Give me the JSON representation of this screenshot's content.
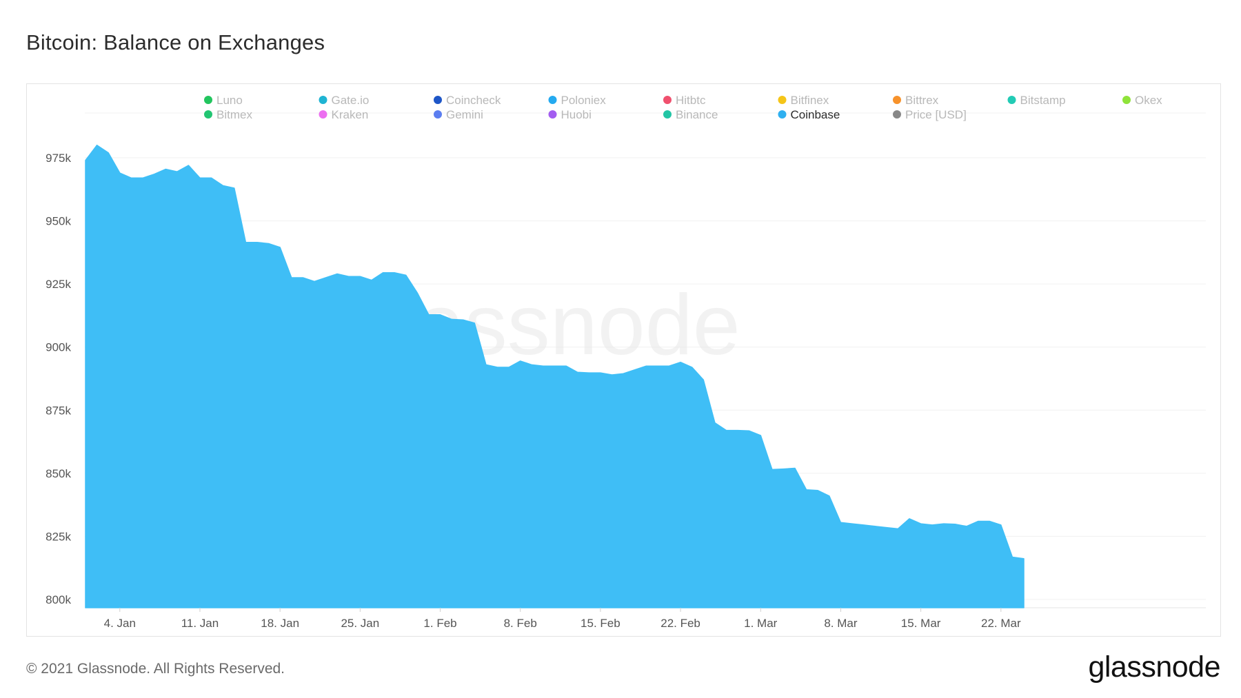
{
  "title": "Bitcoin: Balance on Exchanges",
  "footer": {
    "copyright": "© 2021 Glassnode. All Rights Reserved.",
    "logo": "glassnode"
  },
  "watermark": "glassnode",
  "colors": {
    "area_fill": "#3fbef6",
    "grid": "#f0f0f0",
    "axis_text": "#555555",
    "legend_inactive": "#b8b8b8",
    "legend_active": "#2b2b2b"
  },
  "legend": [
    {
      "name": "Luno",
      "color": "#22c55e",
      "active": false
    },
    {
      "name": "Gate.io",
      "color": "#1fb4d3",
      "active": false
    },
    {
      "name": "Coincheck",
      "color": "#1e56c7",
      "active": false
    },
    {
      "name": "Poloniex",
      "color": "#24aaf0",
      "active": false
    },
    {
      "name": "Hitbtc",
      "color": "#f0506e",
      "active": false
    },
    {
      "name": "Bitfinex",
      "color": "#f5c518",
      "active": false
    },
    {
      "name": "Bittrex",
      "color": "#f7922b",
      "active": false
    },
    {
      "name": "Bitstamp",
      "color": "#22cbb5",
      "active": false
    },
    {
      "name": "Okex",
      "color": "#8fe33a",
      "active": false
    },
    {
      "name": "Bitmex",
      "color": "#22c572",
      "active": false
    },
    {
      "name": "Kraken",
      "color": "#ec6ff0",
      "active": false
    },
    {
      "name": "Gemini",
      "color": "#5b7ef0",
      "active": false
    },
    {
      "name": "Huobi",
      "color": "#a35df0",
      "active": false
    },
    {
      "name": "Binance",
      "color": "#22c5a5",
      "active": false
    },
    {
      "name": "Coinbase",
      "color": "#2fb0f0",
      "active": true
    },
    {
      "name": "Price [USD]",
      "color": "#888888",
      "active": false
    }
  ],
  "chart_data": {
    "type": "area",
    "title": "Bitcoin: Balance on Exchanges",
    "xlabel": "",
    "ylabel": "",
    "ylim": [
      800000,
      980000
    ],
    "y_ticks": [
      {
        "value": 800000,
        "label": "800k"
      },
      {
        "value": 825000,
        "label": "825k"
      },
      {
        "value": 850000,
        "label": "850k"
      },
      {
        "value": 875000,
        "label": "875k"
      },
      {
        "value": 900000,
        "label": "900k"
      },
      {
        "value": 925000,
        "label": "925k"
      },
      {
        "value": 950000,
        "label": "950k"
      },
      {
        "value": 975000,
        "label": "975k"
      }
    ],
    "x_ticks": [
      {
        "date": "2021-01-04",
        "label": "4. Jan"
      },
      {
        "date": "2021-01-11",
        "label": "11. Jan"
      },
      {
        "date": "2021-01-18",
        "label": "18. Jan"
      },
      {
        "date": "2021-01-25",
        "label": "25. Jan"
      },
      {
        "date": "2021-02-01",
        "label": "1. Feb"
      },
      {
        "date": "2021-02-08",
        "label": "8. Feb"
      },
      {
        "date": "2021-02-15",
        "label": "15. Feb"
      },
      {
        "date": "2021-02-22",
        "label": "22. Feb"
      },
      {
        "date": "2021-03-01",
        "label": "1. Mar"
      },
      {
        "date": "2021-03-08",
        "label": "8. Mar"
      },
      {
        "date": "2021-03-15",
        "label": "15. Mar"
      },
      {
        "date": "2021-03-22",
        "label": "22. Mar"
      }
    ],
    "grid": true,
    "legend_position": "top",
    "series": [
      {
        "name": "Coinbase",
        "color": "#3fbef6",
        "points": [
          [
            "2021-01-01",
            974000
          ],
          [
            "2021-01-02",
            980000
          ],
          [
            "2021-01-03",
            977000
          ],
          [
            "2021-01-04",
            969000
          ],
          [
            "2021-01-05",
            967000
          ],
          [
            "2021-01-06",
            967000
          ],
          [
            "2021-01-07",
            968500
          ],
          [
            "2021-01-08",
            970500
          ],
          [
            "2021-01-09",
            969500
          ],
          [
            "2021-01-10",
            972000
          ],
          [
            "2021-01-11",
            967000
          ],
          [
            "2021-01-12",
            967000
          ],
          [
            "2021-01-13",
            964000
          ],
          [
            "2021-01-14",
            963000
          ],
          [
            "2021-01-15",
            941500
          ],
          [
            "2021-01-16",
            941500
          ],
          [
            "2021-01-17",
            941000
          ],
          [
            "2021-01-18",
            939500
          ],
          [
            "2021-01-19",
            927500
          ],
          [
            "2021-01-20",
            927500
          ],
          [
            "2021-01-21",
            926000
          ],
          [
            "2021-01-22",
            927500
          ],
          [
            "2021-01-23",
            929000
          ],
          [
            "2021-01-24",
            928000
          ],
          [
            "2021-01-25",
            928000
          ],
          [
            "2021-01-26",
            926500
          ],
          [
            "2021-01-27",
            929500
          ],
          [
            "2021-01-28",
            929500
          ],
          [
            "2021-01-29",
            928500
          ],
          [
            "2021-01-30",
            921500
          ],
          [
            "2021-01-31",
            912800
          ],
          [
            "2021-02-01",
            912800
          ],
          [
            "2021-02-02",
            911000
          ],
          [
            "2021-02-03",
            910800
          ],
          [
            "2021-02-04",
            909500
          ],
          [
            "2021-02-05",
            893000
          ],
          [
            "2021-02-06",
            892000
          ],
          [
            "2021-02-07",
            892000
          ],
          [
            "2021-02-08",
            894500
          ],
          [
            "2021-02-09",
            893000
          ],
          [
            "2021-02-10",
            892500
          ],
          [
            "2021-02-11",
            892500
          ],
          [
            "2021-02-12",
            892500
          ],
          [
            "2021-02-13",
            890000
          ],
          [
            "2021-02-14",
            889800
          ],
          [
            "2021-02-15",
            889800
          ],
          [
            "2021-02-16",
            889000
          ],
          [
            "2021-02-17",
            889500
          ],
          [
            "2021-02-18",
            891000
          ],
          [
            "2021-02-19",
            892500
          ],
          [
            "2021-02-20",
            892500
          ],
          [
            "2021-02-21",
            892500
          ],
          [
            "2021-02-22",
            894000
          ],
          [
            "2021-02-23",
            892000
          ],
          [
            "2021-02-24",
            887000
          ],
          [
            "2021-02-25",
            870000
          ],
          [
            "2021-02-26",
            867000
          ],
          [
            "2021-02-27",
            867000
          ],
          [
            "2021-02-28",
            866800
          ],
          [
            "2021-03-01",
            865000
          ],
          [
            "2021-03-02",
            851500
          ],
          [
            "2021-03-03",
            851700
          ],
          [
            "2021-03-04",
            852000
          ],
          [
            "2021-03-05",
            843500
          ],
          [
            "2021-03-06",
            843200
          ],
          [
            "2021-03-07",
            841000
          ],
          [
            "2021-03-08",
            830500
          ],
          [
            "2021-03-09",
            830000
          ],
          [
            "2021-03-10",
            829500
          ],
          [
            "2021-03-11",
            829000
          ],
          [
            "2021-03-12",
            828500
          ],
          [
            "2021-03-13",
            828000
          ],
          [
            "2021-03-14",
            832000
          ],
          [
            "2021-03-15",
            830000
          ],
          [
            "2021-03-16",
            829500
          ],
          [
            "2021-03-17",
            830000
          ],
          [
            "2021-03-18",
            829800
          ],
          [
            "2021-03-19",
            829000
          ],
          [
            "2021-03-20",
            831000
          ],
          [
            "2021-03-21",
            831000
          ],
          [
            "2021-03-22",
            829500
          ],
          [
            "2021-03-23",
            816800
          ],
          [
            "2021-03-24",
            816200
          ]
        ]
      }
    ]
  }
}
